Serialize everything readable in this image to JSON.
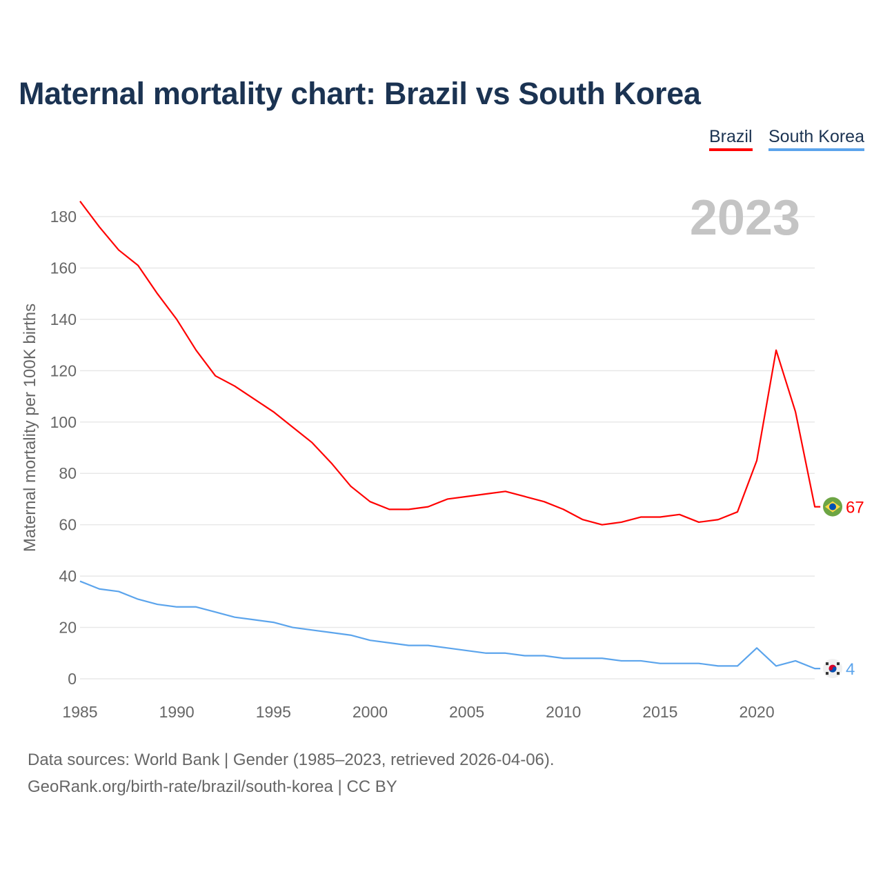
{
  "chart_data": {
    "type": "line",
    "title": "Maternal mortality chart: Brazil vs South Korea",
    "xlabel": "",
    "ylabel": "Maternal mortality per 100K births",
    "year_label": "2023",
    "x": [
      1985,
      1986,
      1987,
      1988,
      1989,
      1990,
      1991,
      1992,
      1993,
      1994,
      1995,
      1996,
      1997,
      1998,
      1999,
      2000,
      2001,
      2002,
      2003,
      2004,
      2005,
      2006,
      2007,
      2008,
      2009,
      2010,
      2011,
      2012,
      2013,
      2014,
      2015,
      2016,
      2017,
      2018,
      2019,
      2020,
      2021,
      2022,
      2023
    ],
    "xlim": [
      1985,
      2023
    ],
    "ylim": [
      0,
      190
    ],
    "xticks": [
      1985,
      1990,
      1995,
      2000,
      2005,
      2010,
      2015,
      2020
    ],
    "yticks": [
      0,
      20,
      40,
      60,
      80,
      100,
      120,
      140,
      160,
      180
    ],
    "grid": true,
    "legend_placement": "top-right",
    "series": [
      {
        "name": "Brazil",
        "color": "#ff0000",
        "end_label": "67",
        "flag": "brazil-flag",
        "values": [
          186,
          176,
          167,
          161,
          150,
          140,
          128,
          118,
          114,
          109,
          104,
          98,
          92,
          84,
          75,
          69,
          66,
          66,
          67,
          70,
          71,
          72,
          73,
          71,
          69,
          66,
          62,
          60,
          61,
          63,
          63,
          64,
          61,
          62,
          65,
          85,
          128,
          104,
          67
        ]
      },
      {
        "name": "South Korea",
        "color": "#5ba4ec",
        "end_label": "4",
        "flag": "south-korea-flag",
        "values": [
          38,
          35,
          34,
          31,
          29,
          28,
          28,
          26,
          24,
          23,
          22,
          20,
          19,
          18,
          17,
          15,
          14,
          13,
          13,
          12,
          11,
          10,
          10,
          9,
          9,
          8,
          8,
          8,
          7,
          7,
          6,
          6,
          6,
          5,
          5,
          12,
          5,
          7,
          4
        ]
      }
    ]
  },
  "footer": {
    "line1": "Data sources: World Bank | Gender (1985–2023, retrieved 2026-04-06).",
    "line2": "GeoRank.org/birth-rate/brazil/south-korea | CC BY"
  }
}
